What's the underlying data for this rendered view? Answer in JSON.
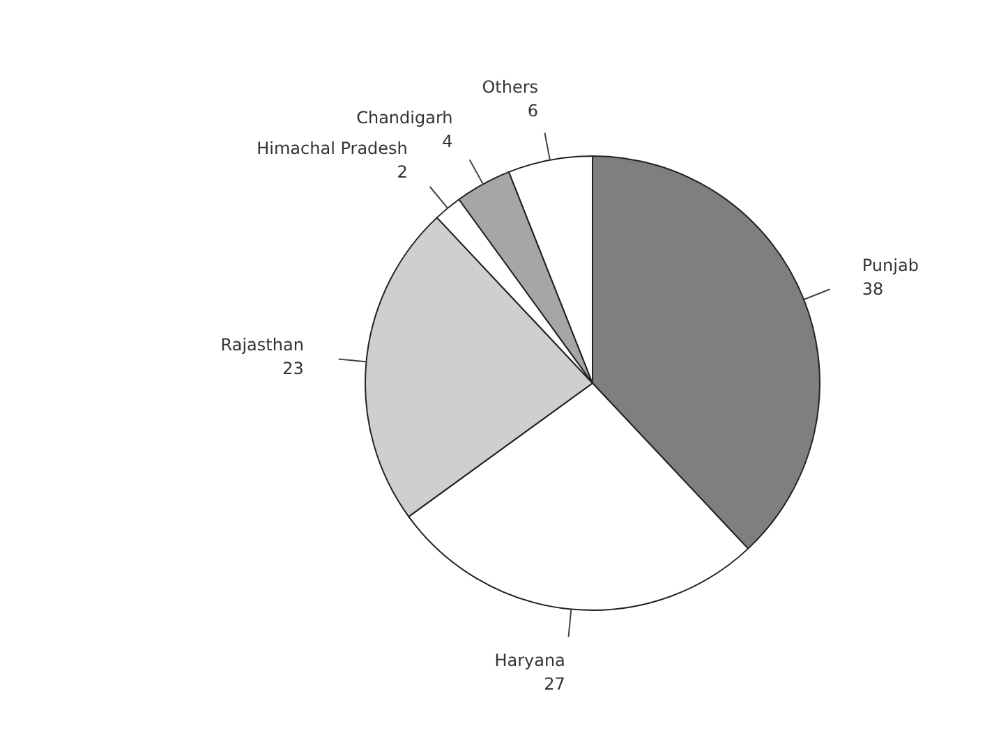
{
  "chart_data": {
    "type": "pie",
    "categories": [
      "Punjab",
      "Haryana",
      "Rajasthan",
      "Himachal Pradesh",
      "Chandigarh",
      "Others"
    ],
    "values": [
      38,
      27,
      23,
      2,
      4,
      6
    ],
    "colors": [
      "#7f7f7f",
      "#ffffff",
      "#cfcfcf",
      "#ffffff",
      "#a6a6a6",
      "#ffffff"
    ],
    "data_labels": true,
    "legend": false
  }
}
